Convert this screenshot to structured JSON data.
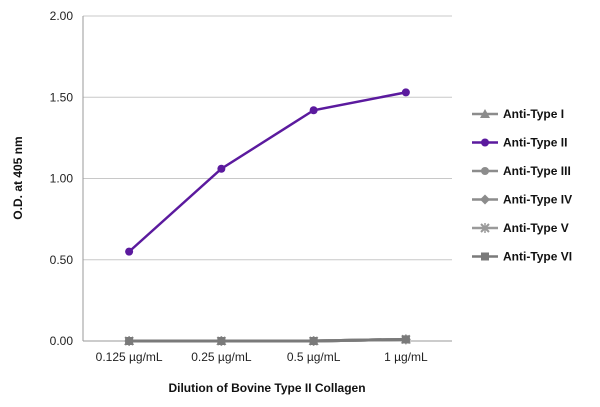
{
  "chart_data": {
    "type": "line",
    "title": "",
    "xlabel": "Dilution of Bovine Type II Collagen",
    "ylabel": "O.D. at 405 nm",
    "categories": [
      "0.125 µg/mL",
      "0.25 µg/mL",
      "0.5 µg/mL",
      "1 µg/mL"
    ],
    "y_ticks": [
      "0.00",
      "0.50",
      "1.00",
      "1.50",
      "2.00"
    ],
    "ylim": [
      0,
      2
    ],
    "grid": "horizontal",
    "legend_position": "right",
    "series": [
      {
        "name": "Anti-Type I",
        "values": [
          0.0,
          0.0,
          0.0,
          0.01
        ],
        "color": "#8c8c8c",
        "marker": "triangle"
      },
      {
        "name": "Anti-Type II",
        "values": [
          0.55,
          1.06,
          1.42,
          1.53
        ],
        "color": "#5b1a9e",
        "marker": "circle"
      },
      {
        "name": "Anti-Type III",
        "values": [
          0.0,
          0.0,
          0.0,
          0.01
        ],
        "color": "#8c8c8c",
        "marker": "circle"
      },
      {
        "name": "Anti-Type IV",
        "values": [
          0.0,
          0.0,
          0.0,
          0.01
        ],
        "color": "#8c8c8c",
        "marker": "diamond"
      },
      {
        "name": "Anti-Type V",
        "values": [
          0.0,
          0.0,
          0.0,
          0.01
        ],
        "color": "#9a9a9a",
        "marker": "x"
      },
      {
        "name": "Anti-Type VI",
        "values": [
          0.0,
          0.0,
          0.0,
          0.01
        ],
        "color": "#7a7a7a",
        "marker": "square"
      }
    ]
  }
}
